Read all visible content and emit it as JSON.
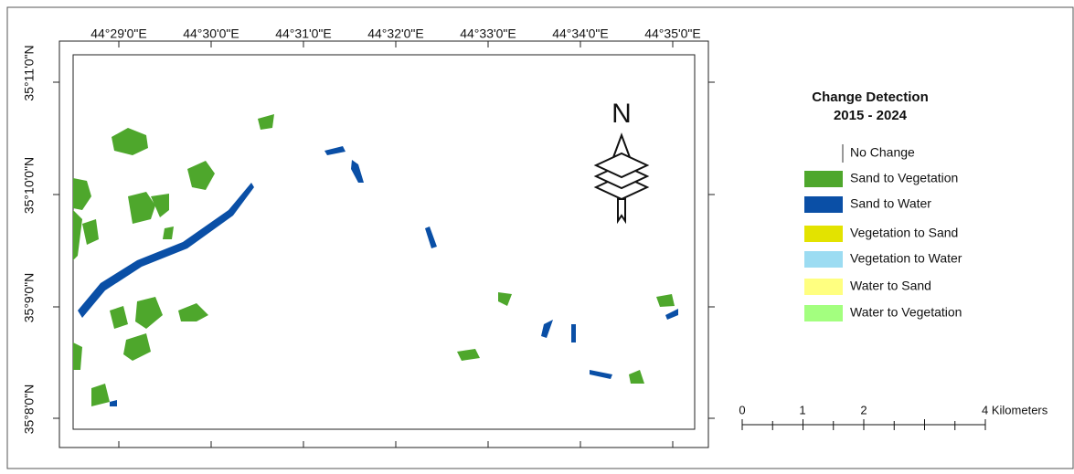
{
  "map": {
    "top_labels": [
      "44°29'0\"E",
      "44°30'0\"E",
      "44°31'0\"E",
      "44°32'0\"E",
      "44°33'0\"E",
      "44°34'0\"E",
      "44°35'0\"E"
    ],
    "left_labels": [
      "35°11'0\"N",
      "35°10'0\"N",
      "35°9'0\"N",
      "35°8'0\"N"
    ],
    "north_label": "N",
    "legend": {
      "title_lines": [
        "Change Detection",
        "2015 - 2024"
      ],
      "items": [
        {
          "label": "No Change",
          "color": "#ffffff"
        },
        {
          "label": "Sand to Vegetation",
          "color": "#4ea72c"
        },
        {
          "label": "Sand to Water",
          "color": "#0a4fa6"
        },
        {
          "label": "Vegetation to Sand",
          "color": "#e3e300"
        },
        {
          "label": "Vegetation to Water",
          "color": "#9cdcf2"
        },
        {
          "label": "Water to Sand",
          "color": "#ffff80"
        },
        {
          "label": "Water to Vegetation",
          "color": "#a3ff7f"
        }
      ]
    },
    "scale_bar": {
      "labels": [
        "0",
        "1",
        "2",
        "4 Kilometers"
      ]
    }
  }
}
